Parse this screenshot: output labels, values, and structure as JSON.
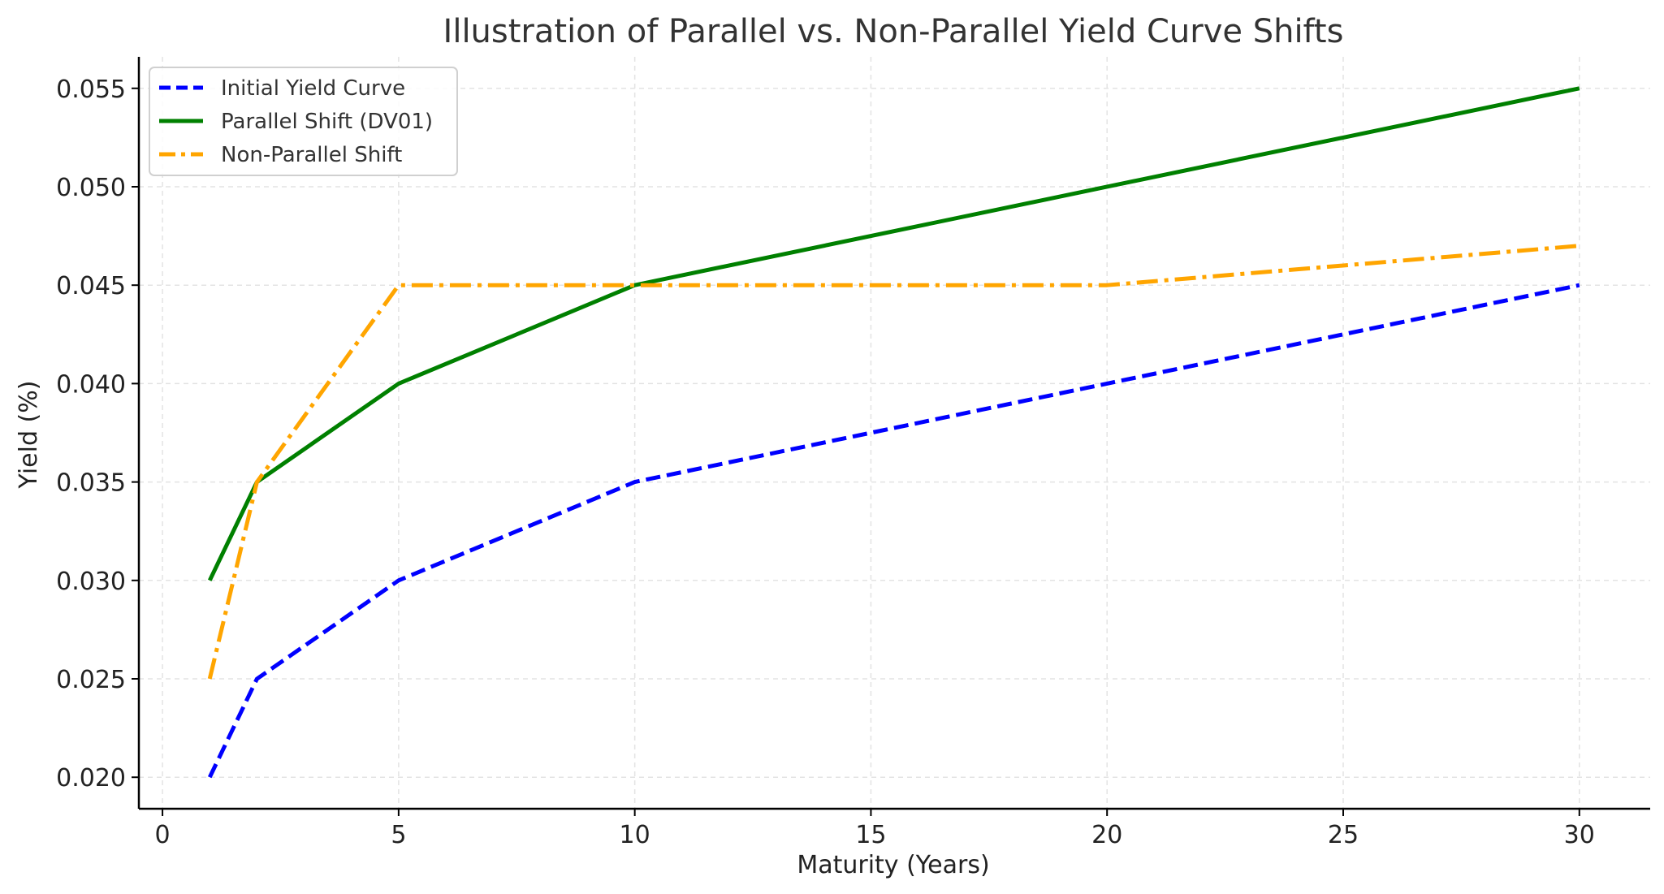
{
  "chart_data": {
    "type": "line",
    "title": "Illustration of Parallel vs. Non-Parallel Yield Curve Shifts",
    "xlabel": "Maturity (Years)",
    "ylabel": "Yield (%)",
    "xlim": [
      -0.5,
      31.5
    ],
    "ylim": [
      0.0184,
      0.0566
    ],
    "x_ticks": [
      0,
      5,
      10,
      15,
      20,
      25,
      30
    ],
    "x_tick_labels": [
      "0",
      "5",
      "10",
      "15",
      "20",
      "25",
      "30"
    ],
    "y_ticks": [
      0.02,
      0.025,
      0.03,
      0.035,
      0.04,
      0.045,
      0.05,
      0.055
    ],
    "y_tick_labels": [
      "0.020",
      "0.025",
      "0.030",
      "0.035",
      "0.040",
      "0.045",
      "0.050",
      "0.055"
    ],
    "grid": true,
    "legend_position": "top-left",
    "x": [
      1,
      2,
      5,
      10,
      20,
      30
    ],
    "series": [
      {
        "name": "Initial Yield Curve",
        "color": "#0000ff",
        "style": "dashed",
        "values": [
          0.02,
          0.025,
          0.03,
          0.035,
          0.04,
          0.045
        ]
      },
      {
        "name": "Parallel Shift (DV01)",
        "color": "#008000",
        "style": "solid",
        "values": [
          0.03,
          0.035,
          0.04,
          0.045,
          0.05,
          0.055
        ]
      },
      {
        "name": "Non-Parallel Shift",
        "color": "#ffa500",
        "style": "dashdot",
        "values": [
          0.025,
          0.035,
          0.045,
          0.045,
          0.045,
          0.047
        ]
      }
    ]
  }
}
